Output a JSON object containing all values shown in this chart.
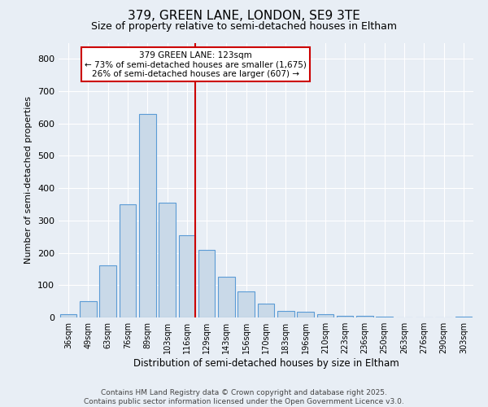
{
  "title1": "379, GREEN LANE, LONDON, SE9 3TE",
  "title2": "Size of property relative to semi-detached houses in Eltham",
  "xlabel": "Distribution of semi-detached houses by size in Eltham",
  "ylabel": "Number of semi-detached properties",
  "categories": [
    "36sqm",
    "49sqm",
    "63sqm",
    "76sqm",
    "89sqm",
    "103sqm",
    "116sqm",
    "129sqm",
    "143sqm",
    "156sqm",
    "170sqm",
    "183sqm",
    "196sqm",
    "210sqm",
    "223sqm",
    "236sqm",
    "250sqm",
    "263sqm",
    "276sqm",
    "290sqm",
    "303sqm"
  ],
  "values": [
    10,
    50,
    160,
    350,
    630,
    355,
    255,
    210,
    125,
    80,
    42,
    20,
    17,
    10,
    6,
    4,
    3,
    1,
    0,
    0,
    2
  ],
  "bar_color": "#c9d9e8",
  "bar_edge_color": "#5b9bd5",
  "vline_color": "#cc0000",
  "annotation_text": "379 GREEN LANE: 123sqm\n← 73% of semi-detached houses are smaller (1,675)\n26% of semi-detached houses are larger (607) →",
  "annotation_box_color": "#cc0000",
  "bg_color": "#e8eef5",
  "footer1": "Contains HM Land Registry data © Crown copyright and database right 2025.",
  "footer2": "Contains public sector information licensed under the Open Government Licence v3.0.",
  "ylim": [
    0,
    850
  ],
  "yticks": [
    0,
    100,
    200,
    300,
    400,
    500,
    600,
    700,
    800
  ],
  "vline_x": 6.42
}
